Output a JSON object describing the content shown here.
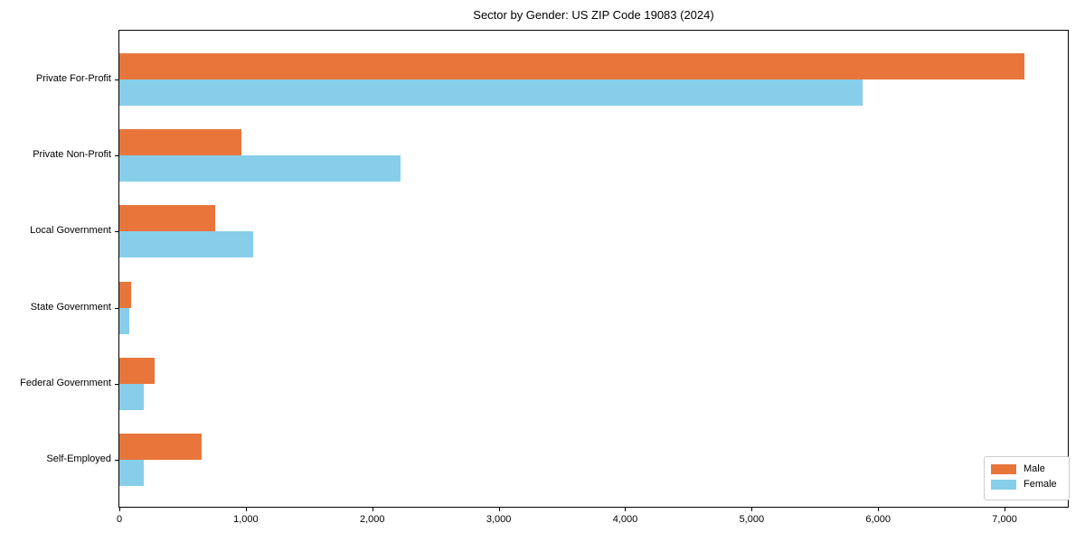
{
  "chart_data": {
    "type": "bar",
    "orientation": "horizontal",
    "title": "Sector by Gender: US ZIP Code 19083 (2024)",
    "categories": [
      "Private For-Profit",
      "Private Non-Profit",
      "Local Government",
      "State Government",
      "Federal Government",
      "Self-Employed"
    ],
    "series": [
      {
        "name": "Male",
        "color": "#e8763b",
        "values": [
          7155,
          965,
          760,
          90,
          280,
          650
        ]
      },
      {
        "name": "Female",
        "color": "#87ceeb",
        "values": [
          5880,
          2220,
          1060,
          80,
          190,
          190
        ]
      }
    ],
    "xlabel": "",
    "ylabel": "",
    "xlim": [
      0,
      7500
    ],
    "xticks": {
      "values": [
        0,
        1000,
        2000,
        3000,
        4000,
        5000,
        6000,
        7000
      ],
      "labels": [
        "0",
        "1,000",
        "2,000",
        "3,000",
        "4,000",
        "5,000",
        "6,000",
        "7,000"
      ]
    },
    "grid": false,
    "legend": {
      "position": "lower right"
    },
    "colors": {
      "axis": "#000000",
      "legend_border": "#cccccc",
      "background": "#ffffff"
    }
  }
}
